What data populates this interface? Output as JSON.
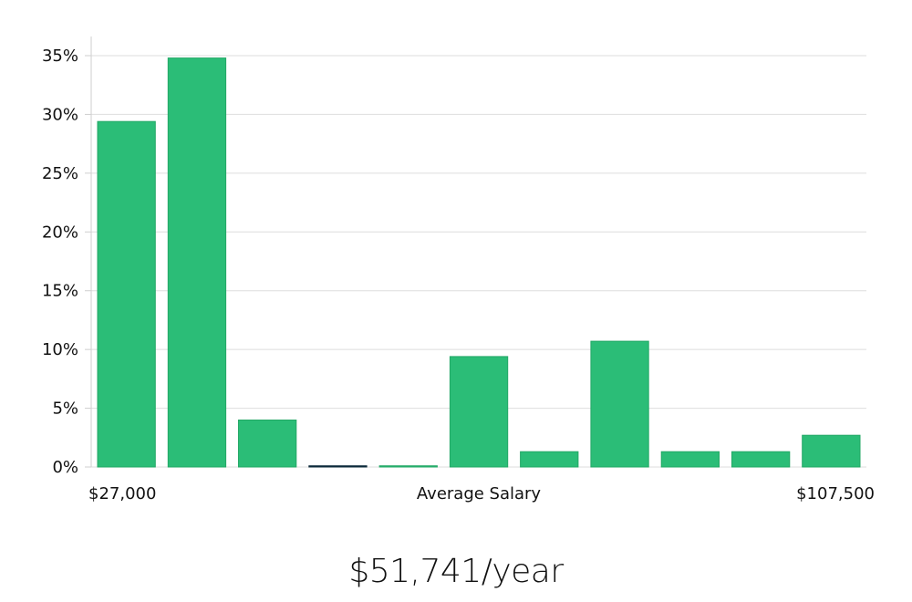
{
  "chart_data": {
    "type": "bar",
    "title": "",
    "xlabel": "Average Salary",
    "ylabel": "",
    "x_range_labels": {
      "min": "$27,000",
      "max": "$107,500"
    },
    "ylim": [
      0,
      35
    ],
    "yticks": [
      0,
      5,
      10,
      15,
      20,
      25,
      30,
      35
    ],
    "ytick_labels": [
      "0%",
      "5%",
      "10%",
      "15%",
      "20%",
      "25%",
      "30%",
      "35%"
    ],
    "grid": true,
    "values": [
      29.4,
      34.8,
      4.0,
      0.1,
      0.1,
      9.4,
      1.3,
      10.7,
      1.3,
      1.3,
      2.7
    ],
    "bar_color": "#2bbd77",
    "bar_edge_color": "#23a866",
    "near_zero_bar_color": "#0d2a3a"
  },
  "summary": {
    "average_salary_text": "$51,741/year"
  }
}
